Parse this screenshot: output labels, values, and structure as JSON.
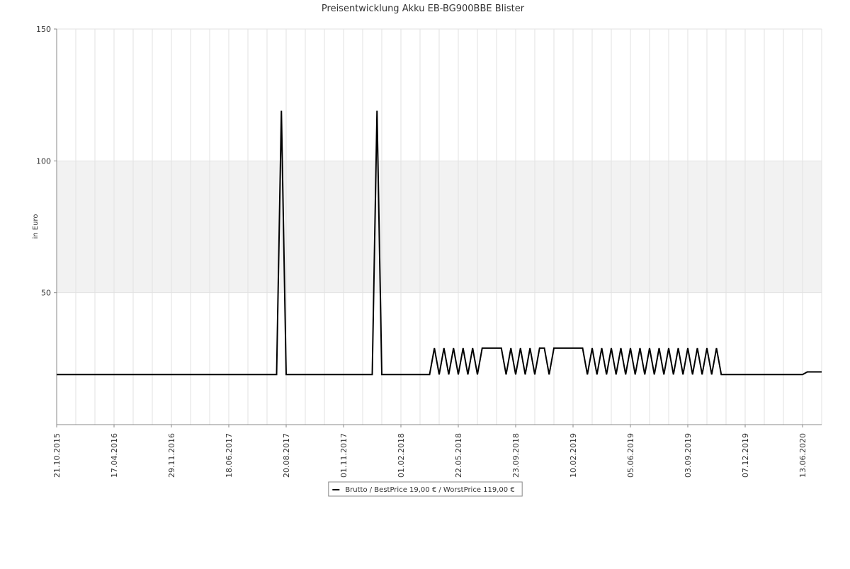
{
  "chart_data": {
    "type": "line",
    "title": "Preisentwicklung Akku EB-BG900BBE Blister",
    "y_label": "in Euro",
    "categories": [
      "21.10.2015",
      null,
      null,
      null,
      null,
      null,
      null,
      null,
      null,
      null,
      null,
      null,
      "17.04.2016",
      null,
      null,
      null,
      null,
      null,
      null,
      null,
      null,
      null,
      null,
      null,
      "29.11.2016",
      null,
      null,
      null,
      null,
      null,
      null,
      null,
      null,
      null,
      null,
      null,
      "18.06.2017",
      null,
      null,
      null,
      null,
      null,
      null,
      null,
      null,
      null,
      null,
      null,
      "20.08.2017",
      null,
      null,
      null,
      null,
      null,
      null,
      null,
      null,
      null,
      null,
      null,
      "01.11.2017",
      null,
      null,
      null,
      null,
      null,
      null,
      null,
      null,
      null,
      null,
      null,
      "01.02.2018",
      null,
      null,
      null,
      null,
      null,
      null,
      null,
      null,
      null,
      null,
      null,
      "22.05.2018",
      null,
      null,
      null,
      null,
      null,
      null,
      null,
      null,
      null,
      null,
      null,
      "23.09.2018",
      null,
      null,
      null,
      null,
      null,
      null,
      null,
      null,
      null,
      null,
      null,
      "10.02.2019",
      null,
      null,
      null,
      null,
      null,
      null,
      null,
      null,
      null,
      null,
      null,
      "05.06.2019",
      null,
      null,
      null,
      null,
      null,
      null,
      null,
      null,
      null,
      null,
      null,
      "03.09.2019",
      null,
      null,
      null,
      null,
      null,
      null,
      null,
      null,
      null,
      null,
      null,
      "07.12.2019",
      null,
      null,
      null,
      null,
      null,
      null,
      null,
      null,
      null,
      null,
      null,
      "13.06.2020",
      null,
      null,
      null,
      null
    ],
    "series": [
      {
        "name": "Brutto / BestPrice  19,00 € / WorstPrice  119,00 €",
        "color": "#000000",
        "values": [
          19,
          19,
          19,
          19,
          19,
          19,
          19,
          19,
          19,
          19,
          19,
          19,
          19,
          19,
          19,
          19,
          19,
          19,
          19,
          19,
          19,
          19,
          19,
          19,
          19,
          19,
          19,
          19,
          19,
          19,
          19,
          19,
          19,
          19,
          19,
          19,
          19,
          19,
          19,
          19,
          19,
          19,
          19,
          19,
          19,
          19,
          19,
          119,
          19,
          19,
          19,
          19,
          19,
          19,
          19,
          19,
          19,
          19,
          19,
          19,
          19,
          19,
          19,
          19,
          19,
          19,
          19,
          119,
          19,
          19,
          19,
          19,
          19,
          19,
          19,
          19,
          19,
          19,
          19,
          29,
          19,
          29,
          19,
          29,
          19,
          29,
          19,
          29,
          19,
          29,
          29,
          29,
          29,
          29,
          19,
          29,
          19,
          29,
          19,
          29,
          19,
          29,
          29,
          19,
          29,
          29,
          29,
          29,
          29,
          29,
          29,
          19,
          29,
          19,
          29,
          19,
          29,
          19,
          29,
          19,
          29,
          19,
          29,
          19,
          29,
          19,
          29,
          19,
          29,
          19,
          29,
          19,
          29,
          19,
          29,
          19,
          29,
          19,
          29,
          19,
          19,
          19,
          19,
          19,
          19,
          19,
          19,
          19,
          19,
          19,
          19,
          19,
          19,
          19,
          19,
          19,
          19,
          20,
          20,
          20,
          20
        ]
      }
    ],
    "ylim": [
      0,
      150
    ],
    "yticks": [
      50,
      100,
      150
    ],
    "grid": true,
    "alternate_bands": true,
    "legend": "bottom"
  }
}
